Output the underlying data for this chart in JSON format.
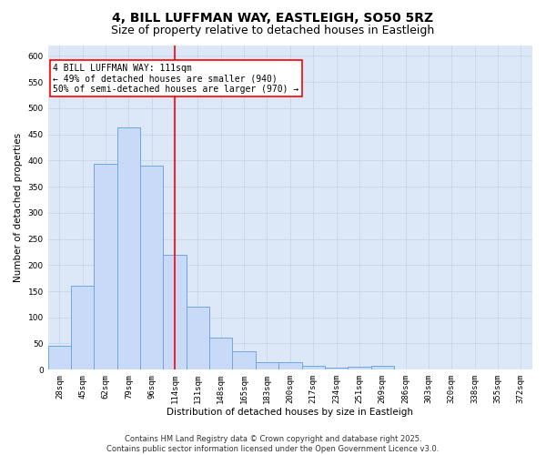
{
  "title": "4, BILL LUFFMAN WAY, EASTLEIGH, SO50 5RZ",
  "subtitle": "Size of property relative to detached houses in Eastleigh",
  "xlabel": "Distribution of detached houses by size in Eastleigh",
  "ylabel": "Number of detached properties",
  "categories": [
    "28sqm",
    "45sqm",
    "62sqm",
    "79sqm",
    "96sqm",
    "114sqm",
    "131sqm",
    "148sqm",
    "165sqm",
    "183sqm",
    "200sqm",
    "217sqm",
    "234sqm",
    "251sqm",
    "269sqm",
    "286sqm",
    "303sqm",
    "320sqm",
    "338sqm",
    "355sqm",
    "372sqm"
  ],
  "values": [
    45,
    160,
    393,
    463,
    390,
    220,
    120,
    62,
    35,
    14,
    14,
    7,
    3,
    5,
    7,
    0,
    0,
    0,
    0,
    0,
    0
  ],
  "bar_color": "#c9daf8",
  "bar_edge_color": "#6fa8dc",
  "grid_color": "#c8d4e8",
  "background_color": "#dce8f8",
  "vline_color": "red",
  "vline_index": 5,
  "annotation_box_text": "4 BILL LUFFMAN WAY: 111sqm\n← 49% of detached houses are smaller (940)\n50% of semi-detached houses are larger (970) →",
  "annotation_box_color": "red",
  "ylim": [
    0,
    620
  ],
  "yticks": [
    0,
    50,
    100,
    150,
    200,
    250,
    300,
    350,
    400,
    450,
    500,
    550,
    600
  ],
  "footer": "Contains HM Land Registry data © Crown copyright and database right 2025.\nContains public sector information licensed under the Open Government Licence v3.0.",
  "title_fontsize": 10,
  "subtitle_fontsize": 9,
  "axis_label_fontsize": 7.5,
  "tick_fontsize": 6.5,
  "annotation_fontsize": 7,
  "footer_fontsize": 6
}
